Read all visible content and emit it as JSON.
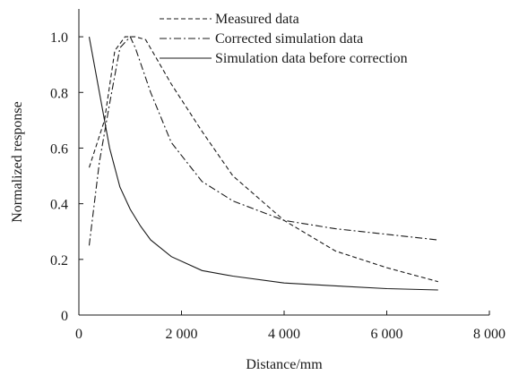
{
  "chart_data": {
    "type": "line",
    "xlabel": "Distance/mm",
    "ylabel": "Normalized response",
    "xlim": [
      0,
      8000
    ],
    "ylim": [
      0,
      1.1
    ],
    "x_ticks": [
      0,
      2000,
      4000,
      6000,
      8000
    ],
    "x_tick_labels": [
      "0",
      "2 000",
      "4 000",
      "6 000",
      "8 000"
    ],
    "y_ticks": [
      0,
      0.2,
      0.4,
      0.6,
      0.8,
      1.0
    ],
    "y_tick_labels": [
      "0",
      "0.2",
      "0.4",
      "0.6",
      "0.8",
      "1.0"
    ],
    "grid": false,
    "legend_position": "top-right",
    "series": [
      {
        "name": "Measured data",
        "dash": "dashed",
        "x": [
          200,
          500,
          700,
          900,
          1100,
          1300,
          1800,
          2400,
          3000,
          4000,
          5000,
          6000,
          7000
        ],
        "y": [
          0.53,
          0.7,
          0.95,
          1.0,
          1.0,
          0.99,
          0.83,
          0.66,
          0.5,
          0.34,
          0.23,
          0.17,
          0.12
        ]
      },
      {
        "name": "Corrected simulation data",
        "dash": "dashdot",
        "x": [
          200,
          400,
          600,
          800,
          1000,
          1100,
          1400,
          1800,
          2400,
          3000,
          4000,
          5000,
          6000,
          7000
        ],
        "y": [
          0.25,
          0.55,
          0.76,
          0.96,
          1.0,
          0.96,
          0.8,
          0.62,
          0.48,
          0.41,
          0.34,
          0.31,
          0.29,
          0.27
        ]
      },
      {
        "name": "Simulation data before correction",
        "dash": "solid",
        "x": [
          200,
          400,
          600,
          800,
          1000,
          1200,
          1400,
          1800,
          2400,
          3000,
          4000,
          5000,
          6000,
          7000
        ],
        "y": [
          1.0,
          0.8,
          0.6,
          0.46,
          0.38,
          0.32,
          0.27,
          0.21,
          0.16,
          0.14,
          0.115,
          0.105,
          0.095,
          0.09
        ]
      }
    ]
  }
}
